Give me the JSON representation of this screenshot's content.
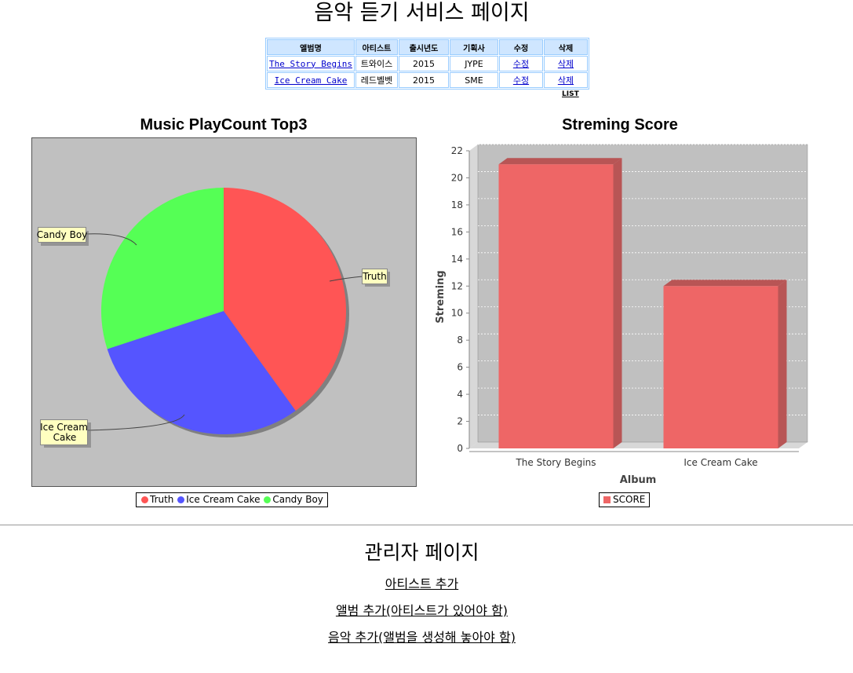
{
  "header": {
    "title": "음악 듣기 서비스 페이지"
  },
  "album_table": {
    "columns": [
      "앨범명",
      "아티스트",
      "출시년도",
      "기획사",
      "수정",
      "삭제"
    ],
    "rows": [
      {
        "album": "The Story Begins",
        "artist": "트와이스",
        "year": "2015",
        "agency": "JYPE",
        "edit": "수정",
        "delete": "삭제"
      },
      {
        "album": "Ice Cream Cake",
        "artist": "레드벨벳",
        "year": "2015",
        "agency": "SME",
        "edit": "수정",
        "delete": "삭제"
      }
    ],
    "list_label": "LIST"
  },
  "chart_data": [
    {
      "type": "pie",
      "title": "Music PlayCount Top3",
      "slices": [
        {
          "label": "Truth",
          "value": 40,
          "color": "#ff5555"
        },
        {
          "label": "Ice Cream Cake",
          "value": 30,
          "color": "#5555ff"
        },
        {
          "label": "Candy Boy",
          "value": 30,
          "color": "#55ff55"
        }
      ],
      "callouts": {
        "truth": "Truth",
        "ice_cream_cake_line1": "Ice Cream",
        "ice_cream_cake_line2": "Cake",
        "candy_boy": "Candy Boy"
      },
      "legend": [
        "Truth",
        "Ice Cream Cake",
        "Candy Boy"
      ],
      "legend_position": "bottom",
      "plot_background": "#c0c0c0"
    },
    {
      "type": "bar",
      "title": "Streming Score",
      "categories": [
        "The Story Begins",
        "Ice Cream Cake"
      ],
      "series": [
        {
          "name": "SCORE",
          "values": [
            21,
            12
          ],
          "color": "#ee6666"
        }
      ],
      "xlabel": "Album",
      "ylabel": "Streming",
      "ylim": [
        0,
        22
      ],
      "yticks": [
        0,
        2,
        4,
        6,
        8,
        10,
        12,
        14,
        16,
        18,
        20,
        22
      ],
      "grid": true,
      "legend_position": "bottom",
      "plot_background": "#c0c0c0"
    }
  ],
  "admin": {
    "title": "관리자 페이지",
    "links": [
      "아티스트 추가",
      "앨범 추가(아티스트가 있어야 함)",
      "음악 추가(앨범을 생성해 놓아야 함)"
    ]
  }
}
